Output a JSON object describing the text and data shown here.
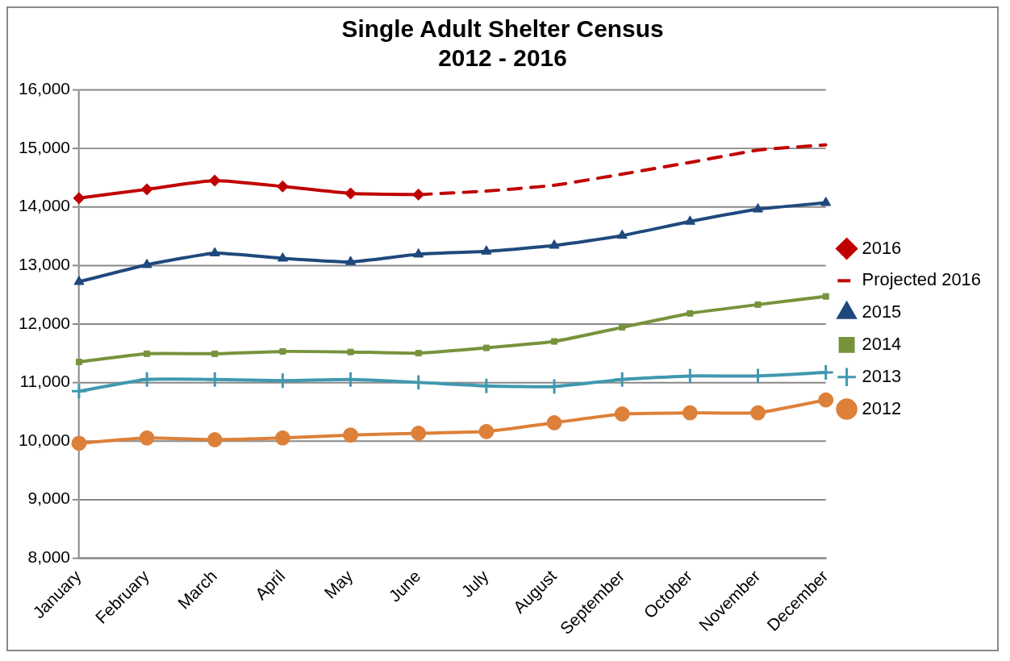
{
  "chart_data": {
    "type": "line",
    "title": "Single Adult Shelter Census\n2012 - 2016",
    "categories": [
      "January",
      "February",
      "March",
      "April",
      "May",
      "June",
      "July",
      "August",
      "September",
      "October",
      "November",
      "December"
    ],
    "ylim": [
      8000,
      16000
    ],
    "yticks": [
      {
        "value": 8000,
        "label": "8,000"
      },
      {
        "value": 9000,
        "label": "9,000"
      },
      {
        "value": 10000,
        "label": "10,000"
      },
      {
        "value": 11000,
        "label": "11,000"
      },
      {
        "value": 12000,
        "label": "12,000"
      },
      {
        "value": 13000,
        "label": "13,000"
      },
      {
        "value": 14000,
        "label": "14,000"
      },
      {
        "value": 15000,
        "label": "15,000"
      },
      {
        "value": 16000,
        "label": "16,000"
      }
    ],
    "grid": "y",
    "legend": "right",
    "series": [
      {
        "name": "2016",
        "color": "#c00000",
        "marker": "diamond",
        "line_style": "solid",
        "values": [
          14150,
          14300,
          14450,
          14350,
          14230,
          14210,
          null,
          null,
          null,
          null,
          null,
          null
        ]
      },
      {
        "name": "Projected 2016",
        "color": "#c00000",
        "marker": "none",
        "line_style": "dashed",
        "values": [
          null,
          null,
          null,
          null,
          null,
          14210,
          14270,
          14370,
          14560,
          14760,
          14970,
          15060
        ]
      },
      {
        "name": "2015",
        "color": "#1f497d",
        "marker": "triangle",
        "line_style": "solid",
        "values": [
          12720,
          13010,
          13210,
          13120,
          13060,
          13190,
          13240,
          13340,
          13510,
          13750,
          13960,
          14070
        ]
      },
      {
        "name": "2014",
        "color": "#77933c",
        "marker": "square",
        "line_style": "solid",
        "values": [
          11350,
          11490,
          11490,
          11530,
          11520,
          11500,
          11590,
          11700,
          11940,
          12180,
          12330,
          12470
        ]
      },
      {
        "name": "2013",
        "color": "#4198af",
        "marker": "cross",
        "line_style": "solid",
        "values": [
          10850,
          11050,
          11050,
          11030,
          11050,
          11000,
          10940,
          10930,
          11050,
          11110,
          11110,
          11170
        ]
      },
      {
        "name": "2012",
        "color": "#dd8039",
        "marker": "circle",
        "line_style": "solid",
        "values": [
          9960,
          10050,
          10020,
          10050,
          10100,
          10130,
          10160,
          10310,
          10460,
          10480,
          10480,
          10700
        ]
      }
    ]
  }
}
